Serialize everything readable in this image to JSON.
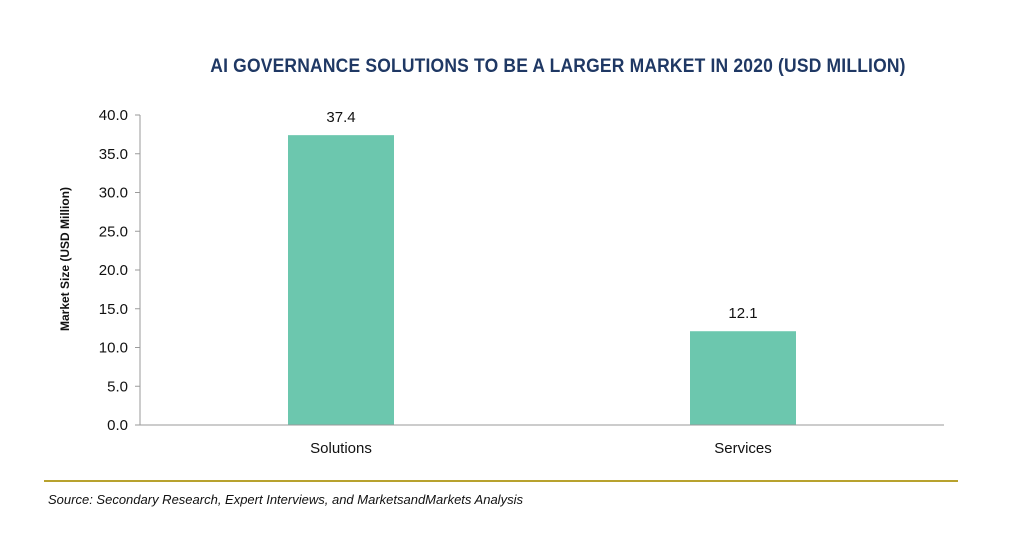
{
  "chart_data": {
    "type": "bar",
    "title": "AI GOVERNANCE SOLUTIONS TO BE A LARGER MARKET IN 2020 (USD MILLION)",
    "ylabel": "Market Size (USD Million)",
    "xlabel": "",
    "categories": [
      "Solutions",
      "Services"
    ],
    "values": [
      37.4,
      12.1
    ],
    "data_labels": [
      "37.4",
      "12.1"
    ],
    "ylim": [
      0,
      40
    ],
    "yticks": [
      "0.0",
      "5.0",
      "10.0",
      "15.0",
      "20.0",
      "25.0",
      "30.0",
      "35.0",
      "40.0"
    ],
    "bar_color": "#6cc7ae",
    "grid": false,
    "legend": "none"
  },
  "source": "Source: Secondary Research, Expert Interviews, and MarketsandMarkets Analysis",
  "colors": {
    "title": "#1f3864",
    "rule": "#b8a22e"
  }
}
